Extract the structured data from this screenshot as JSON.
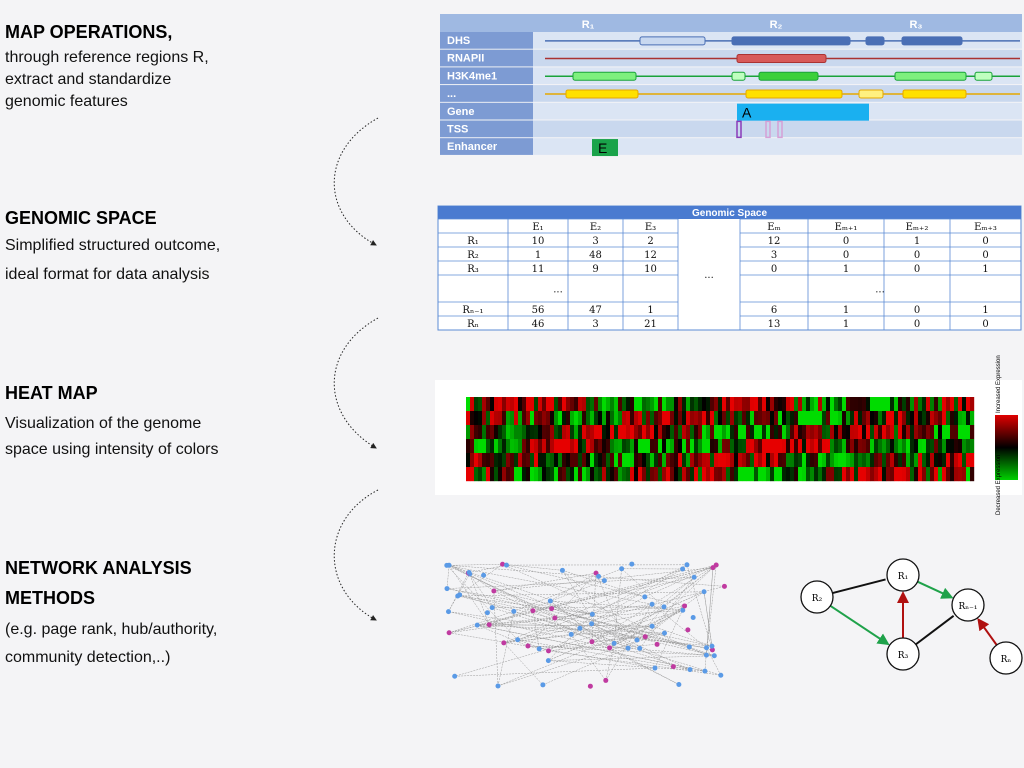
{
  "sections": [
    {
      "title": [
        "MAP OPERATIONS,"
      ],
      "lines": [
        "through reference regions R,",
        "extract and standardize",
        "genomic features"
      ]
    },
    {
      "title": [
        "GENOMIC SPACE"
      ],
      "lines": [
        "Simplified structured outcome,",
        "ideal format for data analysis"
      ]
    },
    {
      "title": [
        "HEAT MAP"
      ],
      "lines": [
        "Visualization of the genome",
        "space using intensity of colors"
      ]
    },
    {
      "title": [
        "NETWORK ANALYSIS",
        "METHODS"
      ],
      "lines": [
        "(e.g. page rank, hub/authority,",
        "community detection,..)"
      ]
    }
  ],
  "tracks": {
    "regions": [
      "R₁",
      "R₂",
      "R₃"
    ],
    "labels": [
      "DHS",
      "RNAPII",
      "H3K4me1",
      "...",
      "Gene",
      "TSS",
      "Enhancer"
    ],
    "gene": "A",
    "enhancer": "E"
  },
  "table": {
    "title": "Genomic Space",
    "left_columns": [
      "E₁",
      "E₂",
      "E₃"
    ],
    "right_columns": [
      "Eₘ",
      "Eₘ₊₁",
      "Eₘ₊₂",
      "Eₘ₊₃"
    ],
    "gap": "...",
    "rows": [
      {
        "label": "R₁",
        "left": [
          10,
          3,
          2
        ],
        "right": [
          12,
          0,
          1,
          0
        ]
      },
      {
        "label": "R₂",
        "left": [
          1,
          48,
          12
        ],
        "right": [
          3,
          0,
          0,
          0
        ]
      },
      {
        "label": "R₃",
        "left": [
          11,
          9,
          10
        ],
        "right": [
          0,
          1,
          0,
          1
        ]
      },
      {
        "label": null,
        "left_gap": "...",
        "right_gap": "..."
      },
      {
        "label": "Rₙ₋₁",
        "left": [
          56,
          47,
          1
        ],
        "right": [
          6,
          1,
          0,
          1
        ]
      },
      {
        "label": "Rₙ",
        "left": [
          46,
          3,
          21
        ],
        "right": [
          13,
          1,
          0,
          0
        ]
      }
    ]
  },
  "heatmap": {
    "top_label": "Increased Expression",
    "bottom_label": "Decreased Expression"
  },
  "network": {
    "nodes": [
      "R₁",
      "R₂",
      "Rₙ₋₁",
      "R₃",
      "Rₙ"
    ]
  }
}
